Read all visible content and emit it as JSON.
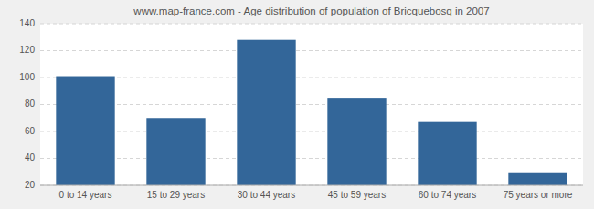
{
  "chart_data": {
    "type": "bar",
    "title": "www.map-france.com - Age distribution of population of Bricquebosq in 2007",
    "categories": [
      "0 to 14 years",
      "15 to 29 years",
      "30 to 44 years",
      "45 to 59 years",
      "60 to 74 years",
      "75 years or more"
    ],
    "values": [
      101,
      70,
      128,
      85,
      67,
      29
    ],
    "color": "#336699",
    "ylim": [
      20,
      140
    ],
    "yticks": [
      20,
      40,
      60,
      80,
      100,
      120,
      140
    ],
    "grid": true
  }
}
